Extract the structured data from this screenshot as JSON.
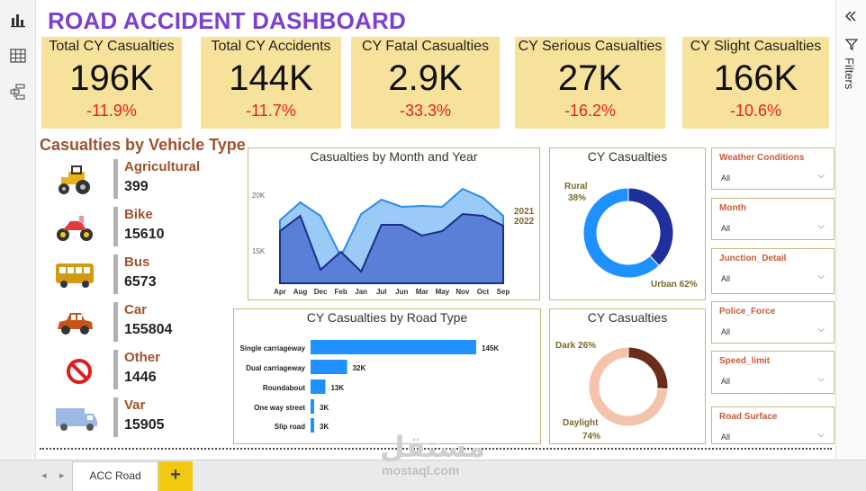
{
  "title": "ROAD ACCIDENT DASHBOARD",
  "kpis": [
    {
      "label": "Total CY Casualties",
      "value": "196K",
      "change": "-11.9%"
    },
    {
      "label": "Total CY Accidents",
      "value": "144K",
      "change": "-11.7%"
    },
    {
      "label": "CY Fatal Casualties",
      "value": "2.9K",
      "change": "-33.3%"
    },
    {
      "label": "CY Serious Casualties",
      "value": "27K",
      "change": "-16.2%"
    },
    {
      "label": "CY Slight Casualties",
      "value": "166K",
      "change": "-10.6%"
    }
  ],
  "vehicle_section": {
    "title": "Casualties by Vehicle Type",
    "items": [
      {
        "name": "Agricultural",
        "value": "399",
        "icon": "tractor-icon"
      },
      {
        "name": "Bike",
        "value": "15610",
        "icon": "motorbike-icon"
      },
      {
        "name": "Bus",
        "value": "6573",
        "icon": "bus-icon"
      },
      {
        "name": "Car",
        "value": "155804",
        "icon": "car-icon"
      },
      {
        "name": "Other",
        "value": "1446",
        "icon": "no-entry-icon"
      },
      {
        "name": "Var",
        "value": "15905",
        "icon": "van-icon"
      }
    ]
  },
  "month_chart": {
    "title": "Casualties by Month and Year",
    "y_ticks": [
      "20K",
      "15K"
    ],
    "legend_2021": "2021",
    "legend_2022": "2022"
  },
  "road_chart": {
    "title": "CY Casualties by Road Type"
  },
  "urban_chart": {
    "title": "CY Casualties",
    "label_rural": "Rural",
    "label_rural_pct": "38%",
    "label_urban": "Urban 62%"
  },
  "light_chart": {
    "title": "CY Casualties",
    "label_dark": "Dark 26%",
    "label_daylight": "Daylight",
    "label_daylight_pct": "74%"
  },
  "filters": [
    {
      "label": "Weather Conditions",
      "value": "All"
    },
    {
      "label": "Month",
      "value": "All"
    },
    {
      "label": "Junction_Detail",
      "value": "All"
    },
    {
      "label": "Police_Force",
      "value": "All"
    },
    {
      "label": "Speed_limit",
      "value": "All"
    },
    {
      "label": "Road Surface",
      "value": "All"
    }
  ],
  "right_pane": {
    "filters_label": "Filters",
    "collapse_icon": "double-chevron-left-icon",
    "filter_icon": "funnel-icon"
  },
  "left_nav": {
    "icons": [
      "report-view-icon",
      "table-view-icon",
      "model-view-icon"
    ]
  },
  "page_tabs": {
    "active": "ACC Road",
    "add": "+"
  },
  "watermark": {
    "arabic": "مستقل",
    "latin": "mostaql.com"
  },
  "colors": {
    "title": "#7b3fd1",
    "kpi_bg": "#f6e29a",
    "negative": "#e8201c",
    "area_2021": "#9ccaf7",
    "area_2022": "#5a7fd6",
    "bar": "#1e90ff",
    "rural": "#1f2f9c",
    "urban": "#1e90ff",
    "dark": "#6b2d1a",
    "daylight": "#f3c4ab",
    "accent": "#f2c811"
  },
  "chart_data": [
    {
      "type": "area",
      "title": "Casualties by Month and Year",
      "categories": [
        "Apr",
        "Aug",
        "Dec",
        "Feb",
        "Jan",
        "Jul",
        "Jun",
        "Mar",
        "May",
        "Nov",
        "Oct",
        "Sep"
      ],
      "series": [
        {
          "name": "2021",
          "values": [
            18000,
            20000,
            18500,
            14000,
            18700,
            20300,
            19500,
            19600,
            19500,
            21500,
            20500,
            18500
          ]
        },
        {
          "name": "2022",
          "values": [
            16800,
            18500,
            12500,
            14500,
            12300,
            17500,
            17500,
            16300,
            16800,
            18700,
            18500,
            17400
          ]
        }
      ],
      "y_ticks": [
        "20K",
        "15K"
      ]
    },
    {
      "type": "bar",
      "title": "CY Casualties by Road Type",
      "categories": [
        "Single carriageway",
        "Dual carriageway",
        "Roundabout",
        "One way street",
        "Slip road"
      ],
      "values": [
        145,
        32,
        13,
        3,
        3
      ],
      "value_labels": [
        "145K",
        "32K",
        "13K",
        "3K",
        "3K"
      ]
    },
    {
      "type": "pie",
      "title": "CY Casualties",
      "categories": [
        "Rural",
        "Urban"
      ],
      "values": [
        38,
        62
      ]
    },
    {
      "type": "pie",
      "title": "CY Casualties",
      "categories": [
        "Dark",
        "Daylight"
      ],
      "values": [
        26,
        74
      ]
    }
  ]
}
